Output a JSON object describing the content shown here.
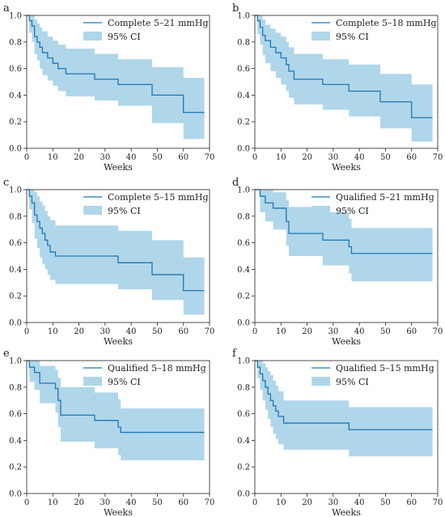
{
  "colors": {
    "line": "#1f77b4",
    "band": "#b0d6ea",
    "axis": "#222222"
  },
  "chart_data": [
    {
      "type": "line",
      "panel_letter": "a",
      "xlabel": "Weeks",
      "ylabel": "",
      "xlim": [
        0,
        70
      ],
      "ylim": [
        0,
        1.0
      ],
      "xticks": [
        0,
        10,
        20,
        30,
        40,
        50,
        60,
        70
      ],
      "yticks": [
        0.0,
        0.2,
        0.4,
        0.6,
        0.8,
        1.0
      ],
      "grid": false,
      "legend_position": "top-right",
      "series": [
        {
          "name": "Complete 5–21 mmHg",
          "style": "step",
          "x": [
            0,
            1,
            2,
            3,
            4,
            5,
            6,
            8,
            10,
            12,
            15,
            26,
            35,
            48,
            60,
            68
          ],
          "y": [
            1.0,
            0.96,
            0.92,
            0.84,
            0.8,
            0.76,
            0.72,
            0.68,
            0.64,
            0.6,
            0.56,
            0.52,
            0.48,
            0.4,
            0.27,
            0.27
          ]
        },
        {
          "name": "95% CI",
          "style": "band",
          "x": [
            0,
            1,
            2,
            3,
            4,
            5,
            6,
            8,
            10,
            12,
            15,
            26,
            35,
            48,
            60,
            68
          ],
          "lower": [
            1.0,
            0.87,
            0.8,
            0.71,
            0.66,
            0.6,
            0.55,
            0.51,
            0.47,
            0.43,
            0.39,
            0.36,
            0.32,
            0.19,
            0.07,
            0.07
          ],
          "upper": [
            1.0,
            1.0,
            1.0,
            0.97,
            0.94,
            0.91,
            0.88,
            0.84,
            0.81,
            0.78,
            0.75,
            0.71,
            0.67,
            0.61,
            0.53,
            0.53
          ]
        }
      ]
    },
    {
      "type": "line",
      "panel_letter": "b",
      "xlabel": "Weeks",
      "ylabel": "",
      "xlim": [
        0,
        70
      ],
      "ylim": [
        0,
        1.0
      ],
      "xticks": [
        0,
        10,
        20,
        30,
        40,
        50,
        60,
        70
      ],
      "yticks": [
        0.0,
        0.2,
        0.4,
        0.6,
        0.8,
        1.0
      ],
      "grid": false,
      "legend_position": "top-right",
      "series": [
        {
          "name": "Complete 5–18 mmHg",
          "style": "step",
          "x": [
            0,
            1,
            2,
            3,
            4,
            6,
            8,
            10,
            12,
            13,
            15,
            26,
            36,
            48,
            60,
            68
          ],
          "y": [
            1.0,
            0.96,
            0.91,
            0.85,
            0.81,
            0.76,
            0.72,
            0.68,
            0.63,
            0.58,
            0.52,
            0.48,
            0.43,
            0.35,
            0.23,
            0.23
          ]
        },
        {
          "name": "95% CI",
          "style": "band",
          "x": [
            0,
            1,
            2,
            3,
            4,
            6,
            8,
            10,
            12,
            13,
            15,
            26,
            36,
            48,
            60,
            68
          ],
          "lower": [
            1.0,
            0.86,
            0.78,
            0.7,
            0.64,
            0.58,
            0.53,
            0.48,
            0.43,
            0.38,
            0.33,
            0.29,
            0.24,
            0.15,
            0.05,
            0.05
          ],
          "upper": [
            1.0,
            1.0,
            1.0,
            0.97,
            0.93,
            0.9,
            0.87,
            0.84,
            0.8,
            0.76,
            0.71,
            0.67,
            0.63,
            0.56,
            0.48,
            0.48
          ]
        }
      ]
    },
    {
      "type": "line",
      "panel_letter": "c",
      "xlabel": "Weeks",
      "ylabel": "",
      "xlim": [
        0,
        70
      ],
      "ylim": [
        0,
        1.0
      ],
      "xticks": [
        0,
        10,
        20,
        30,
        40,
        50,
        60,
        70
      ],
      "yticks": [
        0.0,
        0.2,
        0.4,
        0.6,
        0.8,
        1.0
      ],
      "grid": false,
      "legend_position": "top-right",
      "series": [
        {
          "name": "Complete 5–15 mmHg",
          "style": "step",
          "x": [
            0,
            1,
            2,
            3,
            4,
            5,
            6,
            7,
            8,
            9,
            11,
            35,
            48,
            60,
            68
          ],
          "y": [
            1.0,
            0.95,
            0.9,
            0.81,
            0.76,
            0.71,
            0.67,
            0.62,
            0.58,
            0.53,
            0.5,
            0.45,
            0.36,
            0.24,
            0.24
          ]
        },
        {
          "name": "95% CI",
          "style": "band",
          "x": [
            0,
            1,
            2,
            3,
            4,
            5,
            6,
            7,
            8,
            9,
            11,
            35,
            48,
            60,
            68
          ],
          "lower": [
            1.0,
            0.85,
            0.75,
            0.63,
            0.56,
            0.49,
            0.44,
            0.4,
            0.36,
            0.32,
            0.29,
            0.25,
            0.17,
            0.06,
            0.06
          ],
          "upper": [
            1.0,
            1.0,
            1.0,
            0.98,
            0.95,
            0.91,
            0.88,
            0.84,
            0.8,
            0.77,
            0.73,
            0.69,
            0.62,
            0.49,
            0.49
          ]
        }
      ]
    },
    {
      "type": "line",
      "panel_letter": "d",
      "xlabel": "Weeks",
      "ylabel": "",
      "xlim": [
        0,
        70
      ],
      "ylim": [
        0,
        1.0
      ],
      "xticks": [
        0,
        10,
        20,
        30,
        40,
        50,
        60,
        70
      ],
      "yticks": [
        0.0,
        0.2,
        0.4,
        0.6,
        0.8,
        1.0
      ],
      "grid": false,
      "legend_position": "top-right",
      "series": [
        {
          "name": "Qualified 5–21 mmHg",
          "style": "step",
          "x": [
            0,
            2,
            4,
            7,
            12,
            13,
            26,
            36,
            37,
            68
          ],
          "y": [
            1.0,
            0.95,
            0.9,
            0.86,
            0.76,
            0.67,
            0.62,
            0.57,
            0.52,
            0.52
          ]
        },
        {
          "name": "95% CI",
          "style": "band",
          "x": [
            0,
            2,
            4,
            7,
            12,
            13,
            26,
            36,
            37,
            68
          ],
          "lower": [
            1.0,
            0.83,
            0.76,
            0.7,
            0.58,
            0.5,
            0.43,
            0.37,
            0.31,
            0.31
          ],
          "upper": [
            1.0,
            1.0,
            1.0,
            0.98,
            0.92,
            0.87,
            0.83,
            0.78,
            0.71,
            0.71
          ]
        }
      ]
    },
    {
      "type": "line",
      "panel_letter": "e",
      "xlabel": "Weeks",
      "ylabel": "",
      "xlim": [
        0,
        70
      ],
      "ylim": [
        0,
        1.0
      ],
      "xticks": [
        0,
        10,
        20,
        30,
        40,
        50,
        60,
        70
      ],
      "yticks": [
        0.0,
        0.2,
        0.4,
        0.6,
        0.8,
        1.0
      ],
      "grid": false,
      "legend_position": "top-right",
      "series": [
        {
          "name": "Qualified 5–18 mmHg",
          "style": "step",
          "x": [
            0,
            1,
            3,
            5,
            11,
            12,
            13,
            26,
            35,
            36,
            68
          ],
          "y": [
            1.0,
            0.95,
            0.91,
            0.83,
            0.79,
            0.7,
            0.59,
            0.55,
            0.5,
            0.46,
            0.46
          ]
        },
        {
          "name": "95% CI",
          "style": "band",
          "x": [
            0,
            1,
            3,
            5,
            11,
            12,
            13,
            26,
            35,
            36,
            68
          ],
          "lower": [
            1.0,
            0.84,
            0.78,
            0.68,
            0.61,
            0.5,
            0.39,
            0.34,
            0.29,
            0.25,
            0.25
          ],
          "upper": [
            1.0,
            1.0,
            1.0,
            0.96,
            0.93,
            0.87,
            0.8,
            0.76,
            0.71,
            0.64,
            0.64
          ]
        }
      ]
    },
    {
      "type": "line",
      "panel_letter": "f",
      "xlabel": "Weeks",
      "ylabel": "",
      "xlim": [
        0,
        70
      ],
      "ylim": [
        0,
        1.0
      ],
      "xticks": [
        0,
        10,
        20,
        30,
        40,
        50,
        60,
        70
      ],
      "yticks": [
        0.0,
        0.2,
        0.4,
        0.6,
        0.8,
        1.0
      ],
      "grid": false,
      "legend_position": "top-right",
      "series": [
        {
          "name": "Qualified 5–15 mmHg",
          "style": "step",
          "x": [
            0,
            1,
            2,
            3,
            4,
            5,
            6,
            7,
            8,
            9,
            11,
            36,
            68
          ],
          "y": [
            1.0,
            0.95,
            0.9,
            0.85,
            0.8,
            0.75,
            0.7,
            0.66,
            0.62,
            0.58,
            0.53,
            0.48,
            0.48
          ]
        },
        {
          "name": "95% CI",
          "style": "band",
          "x": [
            0,
            1,
            2,
            3,
            4,
            5,
            6,
            7,
            8,
            9,
            11,
            36,
            68
          ],
          "lower": [
            1.0,
            0.87,
            0.78,
            0.7,
            0.63,
            0.56,
            0.5,
            0.45,
            0.41,
            0.37,
            0.33,
            0.28,
            0.28
          ],
          "upper": [
            1.0,
            1.0,
            1.0,
            0.98,
            0.95,
            0.92,
            0.89,
            0.85,
            0.81,
            0.77,
            0.7,
            0.65,
            0.65
          ]
        }
      ]
    }
  ]
}
